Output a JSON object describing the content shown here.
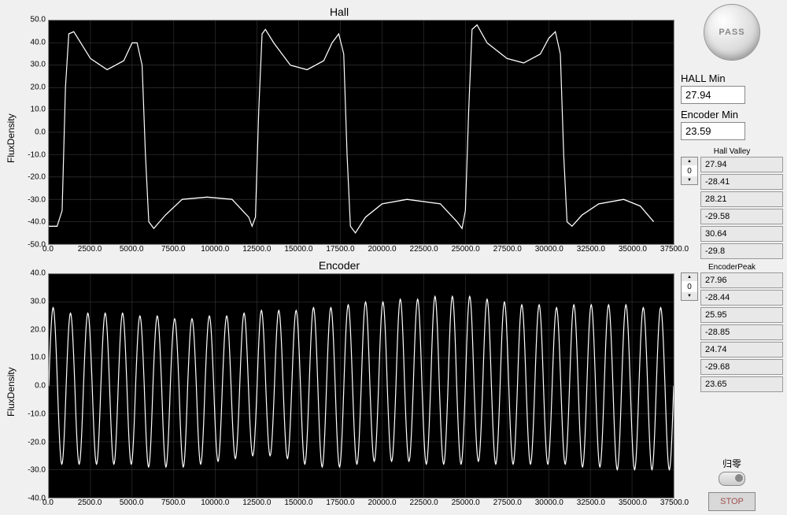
{
  "chart1": {
    "title": "Hall",
    "ylabel": "FluxDensity",
    "ylim": [
      -50,
      50
    ],
    "ytick_step": 10,
    "xlim": [
      0,
      37500
    ],
    "xtick_step": 2500,
    "yticks": [
      "50.0",
      "40.0",
      "30.0",
      "20.0",
      "10.0",
      "0.0",
      "-10.0",
      "-20.0",
      "-30.0",
      "-40.0",
      "-50.0"
    ],
    "xticks": [
      "0.0",
      "2500.0",
      "5000.0",
      "7500.0",
      "10000.0",
      "12500.0",
      "15000.0",
      "17500.0",
      "20000.0",
      "22500.0",
      "25000.0",
      "27500.0",
      "30000.0",
      "32500.0",
      "35000.0",
      "37500.0"
    ],
    "line_color": "#ffffff",
    "grid_color": "#404040",
    "data": [
      [
        0,
        -42
      ],
      [
        500,
        -42
      ],
      [
        800,
        -35
      ],
      [
        1000,
        20
      ],
      [
        1200,
        44
      ],
      [
        1500,
        45
      ],
      [
        2500,
        33
      ],
      [
        3500,
        28
      ],
      [
        4500,
        32
      ],
      [
        5000,
        40
      ],
      [
        5300,
        40
      ],
      [
        5600,
        30
      ],
      [
        5800,
        -10
      ],
      [
        6000,
        -40
      ],
      [
        6300,
        -43
      ],
      [
        7000,
        -37
      ],
      [
        8000,
        -30
      ],
      [
        9500,
        -29
      ],
      [
        11000,
        -30
      ],
      [
        12000,
        -38
      ],
      [
        12200,
        -42
      ],
      [
        12400,
        -38
      ],
      [
        12600,
        10
      ],
      [
        12800,
        44
      ],
      [
        13000,
        46
      ],
      [
        13500,
        40
      ],
      [
        14500,
        30
      ],
      [
        15500,
        28
      ],
      [
        16500,
        32
      ],
      [
        17000,
        40
      ],
      [
        17400,
        44
      ],
      [
        17700,
        35
      ],
      [
        17900,
        -10
      ],
      [
        18100,
        -42
      ],
      [
        18400,
        -45
      ],
      [
        19000,
        -38
      ],
      [
        20000,
        -32
      ],
      [
        21500,
        -30
      ],
      [
        23500,
        -32
      ],
      [
        24500,
        -40
      ],
      [
        24800,
        -43
      ],
      [
        25000,
        -35
      ],
      [
        25200,
        10
      ],
      [
        25400,
        46
      ],
      [
        25700,
        48
      ],
      [
        26300,
        40
      ],
      [
        27500,
        33
      ],
      [
        28500,
        31
      ],
      [
        29500,
        35
      ],
      [
        30000,
        42
      ],
      [
        30400,
        45
      ],
      [
        30700,
        35
      ],
      [
        30900,
        -10
      ],
      [
        31100,
        -40
      ],
      [
        31400,
        -42
      ],
      [
        32000,
        -37
      ],
      [
        33000,
        -32
      ],
      [
        34500,
        -30
      ],
      [
        35500,
        -33
      ],
      [
        36300,
        -40
      ]
    ]
  },
  "chart2": {
    "title": "Encoder",
    "ylabel": "FluxDensity",
    "ylim": [
      -40,
      40
    ],
    "ytick_step": 10,
    "xlim": [
      0,
      37500
    ],
    "xtick_step": 2500,
    "yticks": [
      "40.0",
      "30.0",
      "20.0",
      "10.0",
      "0.0",
      "-10.0",
      "-20.0",
      "-30.0",
      "-40.0"
    ],
    "xticks": [
      "0.0",
      "2500.0",
      "5000.0",
      "7500.0",
      "10000.0",
      "12500.0",
      "15000.0",
      "17500.0",
      "20000.0",
      "22500.0",
      "25000.0",
      "27500.0",
      "30000.0",
      "32500.0",
      "35000.0",
      "37500.0"
    ],
    "line_color": "#ffffff",
    "grid_color": "#404040",
    "cycles": 36,
    "amplitudes_pos": [
      28,
      26,
      26,
      26,
      26,
      25,
      25,
      24,
      24,
      25,
      25,
      26,
      27,
      27,
      27,
      28,
      28,
      29,
      30,
      30,
      31,
      31,
      32,
      32,
      32,
      31,
      30,
      29,
      29,
      28,
      29,
      29,
      29,
      29,
      28,
      28
    ],
    "amplitudes_neg": [
      -28,
      -28,
      -28,
      -28,
      -28,
      -29,
      -29,
      -29,
      -28,
      -27,
      -26,
      -25,
      -25,
      -26,
      -28,
      -29,
      -29,
      -28,
      -27,
      -27,
      -27,
      -28,
      -28,
      -28,
      -27,
      -28,
      -28,
      -28,
      -28,
      -28,
      -29,
      -29,
      -30,
      -30,
      -30,
      -30
    ]
  },
  "pass_label": "PASS",
  "hall_min": {
    "label": "HALL Min",
    "value": "27.94"
  },
  "encoder_min": {
    "label": "Encoder Min",
    "value": "23.59"
  },
  "hall_valley": {
    "label": "Hall Valley",
    "index": "0",
    "values": [
      "27.94",
      "-28.41",
      "28.21",
      "-29.58",
      "30.64",
      "-29.8"
    ]
  },
  "encoder_peak": {
    "label": "EncoderPeak",
    "index": "0",
    "values": [
      "27.96",
      "-28.44",
      "25.95",
      "-28.85",
      "24.74",
      "-29.68",
      "23.65"
    ]
  },
  "reset_label": "归零",
  "stop_label": "STOP"
}
